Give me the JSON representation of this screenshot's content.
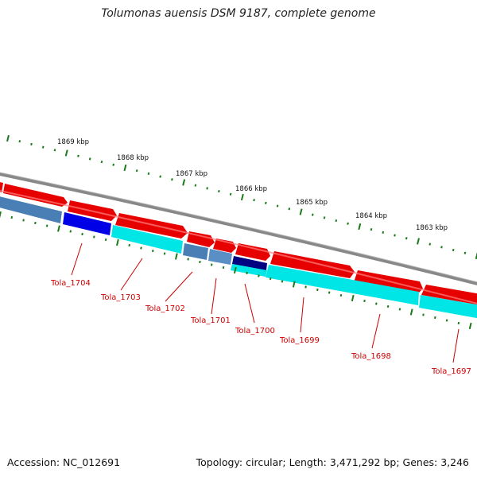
{
  "title": "Tolumonas auensis DSM 9187, complete genome",
  "footer": {
    "accession": "Accession: NC_012691",
    "summary": "Topology: circular; Length: 3,471,292 bp; Genes: 3,246"
  },
  "scale_labels": [
    "1869 kbp",
    "1868 kbp",
    "1867 kbp",
    "1866 kbp",
    "1865 kbp",
    "1864 kbp",
    "1863 kbp"
  ],
  "gene_labels": [
    "Tola_1704",
    "Tola_1703",
    "Tola_1702",
    "Tola_1701",
    "Tola_1700",
    "Tola_1699",
    "Tola_1698",
    "Tola_1697"
  ],
  "colors": {
    "backbone": "#888888",
    "forward_cds": "#e60000",
    "reverse_cds": "#4a7fb5",
    "highlight_dark": "#000080",
    "highlight_blue": "#0000e6",
    "cyan_track": "#00e5e5",
    "tick": "#1a7a1a",
    "gene_label": "#cc0000"
  }
}
